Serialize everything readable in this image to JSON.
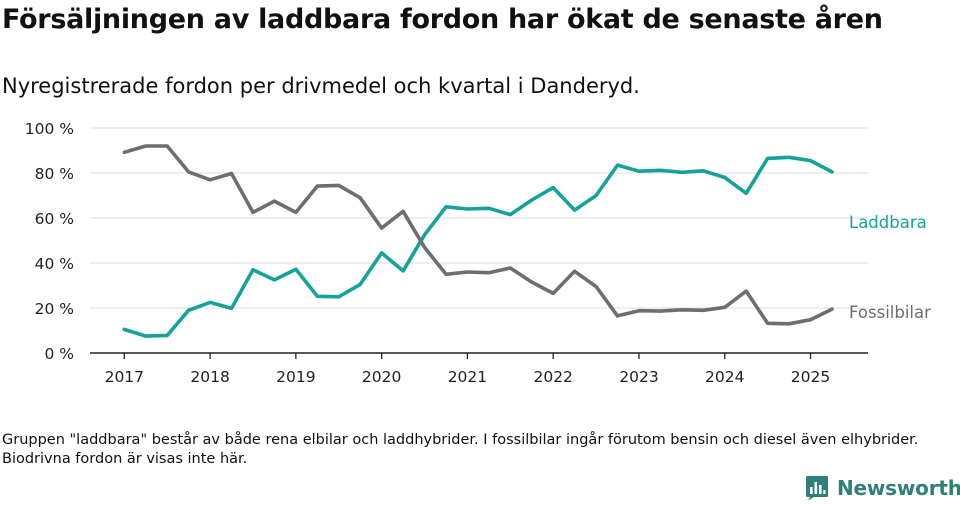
{
  "header": {
    "title": "Försäljningen av laddbara fordon har ökat de senaste åren",
    "subtitle": "Nyregistrerade fordon per drivmedel och kvartal i Danderyd."
  },
  "footnote": "Gruppen \"laddbara\" består av både rena elbilar och laddhybrider. I fossilbilar ingår förutom bensin och diesel även elhybrider. Biodrivna fordon är visas inte här.",
  "brand": {
    "name": "Newsworthy"
  },
  "chart_data": {
    "type": "line",
    "title": "Försäljningen av laddbara fordon har ökat de senaste åren",
    "subtitle": "Nyregistrerade fordon per drivmedel och kvartal i Danderyd.",
    "xlabel": "",
    "ylabel": "",
    "x_unit": "year",
    "xlim": [
      2016.6,
      2025.67
    ],
    "ylim": [
      0,
      100
    ],
    "x_ticks": [
      2017,
      2018,
      2019,
      2020,
      2021,
      2022,
      2023,
      2024,
      2025
    ],
    "x_tick_labels": [
      "2017",
      "2018",
      "2019",
      "2020",
      "2021",
      "2022",
      "2023",
      "2024",
      "2025"
    ],
    "y_ticks": [
      0,
      20,
      40,
      60,
      80,
      100
    ],
    "y_tick_labels": [
      "0 %",
      "20 %",
      "40 %",
      "60 %",
      "80 %",
      "100 %"
    ],
    "grid": "horizontal",
    "x": [
      2017.0,
      2017.25,
      2017.5,
      2017.75,
      2018.0,
      2018.25,
      2018.5,
      2018.75,
      2019.0,
      2019.25,
      2019.5,
      2019.75,
      2020.0,
      2020.25,
      2020.5,
      2020.75,
      2021.0,
      2021.25,
      2021.5,
      2021.75,
      2022.0,
      2022.25,
      2022.5,
      2022.75,
      2023.0,
      2023.25,
      2023.5,
      2023.75,
      2024.0,
      2024.25,
      2024.5,
      2024.75,
      2025.0,
      2025.25
    ],
    "series": [
      {
        "name": "Laddbara",
        "color": "#14a398",
        "values": [
          10.5,
          7.5,
          7.8,
          19,
          22.5,
          19.8,
          37,
          32.5,
          37.2,
          25.2,
          25,
          30.5,
          44.5,
          36.5,
          52.5,
          65,
          64,
          64.3,
          61.5,
          68,
          73.5,
          63.5,
          70,
          83.5,
          80.8,
          81.2,
          80.3,
          81,
          78,
          71,
          86.5,
          87,
          85.5,
          80.5
        ]
      },
      {
        "name": "Fossilbilar",
        "color": "#6e6d72",
        "values": [
          89.2,
          92,
          92,
          80.5,
          77,
          79.8,
          62.5,
          67.5,
          62.5,
          74.2,
          74.5,
          69,
          55.5,
          63,
          47,
          35,
          36,
          35.7,
          37.8,
          31.5,
          26.5,
          36.3,
          29.5,
          16.5,
          18.8,
          18.6,
          19.2,
          19,
          20.3,
          27.5,
          13.2,
          13,
          14.8,
          19.5
        ]
      }
    ],
    "legend": "inline labels at right end of lines"
  }
}
